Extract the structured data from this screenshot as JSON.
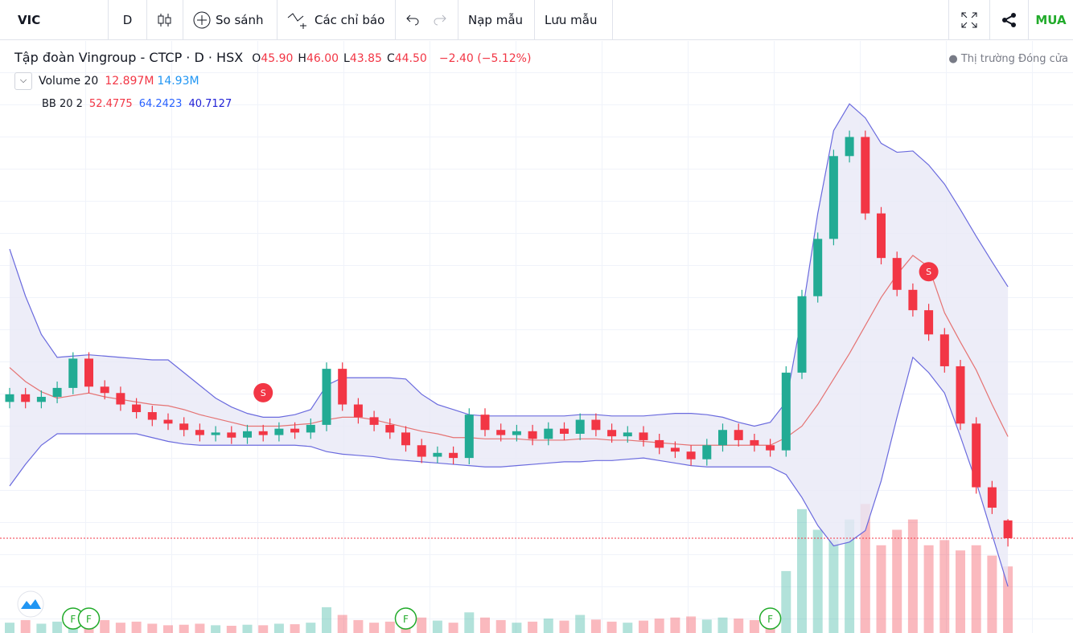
{
  "toolbar": {
    "symbol": "VIC",
    "interval": "D",
    "compare": "So sánh",
    "indicators": "Các chỉ báo",
    "load": "Nạp mẫu",
    "save": "Lưu mẫu",
    "buy": "MUA"
  },
  "legend": {
    "title": "Tập đoàn Vingroup - CTCP · D · HSX",
    "ohlc": [
      {
        "key": "O",
        "value": "45.90"
      },
      {
        "key": "H",
        "value": "46.00"
      },
      {
        "key": "L",
        "value": "43.85"
      },
      {
        "key": "C",
        "value": "44.50"
      }
    ],
    "change": "−2.40 (−5.12%)",
    "status": "Thị trường Đóng cửa"
  },
  "indicators": [
    {
      "name": "Volume 20",
      "values": [
        "12.897M",
        "14.93M"
      ]
    },
    {
      "name": "BB 20 2",
      "values": [
        "52.4775",
        "64.2423",
        "40.7127"
      ]
    }
  ],
  "chart_data": {
    "type": "candlestick",
    "open": [
      55.2,
      55.8,
      55.2,
      55.6,
      56.3,
      58.6,
      56.4,
      55.9,
      55.0,
      54.4,
      53.8,
      53.5,
      53.0,
      52.6,
      52.8,
      52.4,
      52.9,
      52.6,
      53.1,
      52.8,
      53.4,
      57.8,
      55.0,
      54.0,
      53.4,
      52.8,
      51.8,
      50.9,
      51.2,
      50.8,
      54.2,
      53.0,
      52.6,
      52.9,
      52.3,
      53.1,
      52.7,
      53.8,
      53.0,
      52.5,
      52.8,
      52.2,
      51.6,
      51.3,
      50.7,
      51.8,
      53.0,
      52.2,
      51.8,
      51.4,
      57.5,
      63.5,
      68.0,
      74.5,
      76.0,
      70.0,
      66.5,
      64.0,
      62.4,
      60.5,
      58.0,
      53.5,
      48.5,
      45.9
    ],
    "high": [
      56.3,
      56.3,
      56.1,
      56.8,
      59.1,
      59.1,
      56.9,
      56.4,
      55.5,
      54.9,
      54.3,
      54.0,
      53.5,
      53.3,
      53.3,
      53.4,
      53.4,
      53.6,
      53.6,
      53.9,
      58.3,
      58.3,
      55.5,
      54.5,
      53.9,
      53.3,
      52.3,
      51.7,
      51.7,
      54.7,
      54.7,
      53.5,
      53.4,
      53.4,
      53.6,
      53.6,
      54.3,
      54.3,
      53.5,
      53.3,
      53.3,
      52.7,
      52.1,
      51.8,
      52.3,
      53.5,
      53.5,
      52.7,
      52.3,
      58.0,
      64.0,
      68.5,
      75.0,
      76.5,
      76.5,
      70.5,
      67.0,
      64.5,
      62.9,
      61.0,
      58.5,
      54.0,
      49.0,
      46.0
    ],
    "low": [
      54.7,
      54.7,
      54.7,
      55.1,
      55.8,
      55.9,
      55.4,
      54.5,
      53.9,
      53.3,
      53.0,
      52.5,
      52.1,
      52.1,
      51.9,
      51.9,
      52.1,
      52.1,
      52.3,
      52.3,
      52.9,
      54.5,
      53.5,
      52.9,
      52.3,
      51.3,
      50.4,
      50.4,
      50.3,
      50.3,
      52.5,
      52.1,
      52.1,
      51.8,
      51.8,
      52.2,
      52.2,
      52.5,
      52.0,
      52.0,
      51.7,
      51.1,
      50.8,
      50.2,
      50.2,
      51.3,
      51.7,
      51.3,
      50.9,
      50.9,
      57.0,
      63.0,
      67.5,
      74.0,
      69.5,
      66.0,
      63.5,
      61.9,
      60.0,
      57.5,
      53.0,
      48.0,
      46.4,
      43.85
    ],
    "close": [
      55.8,
      55.2,
      55.6,
      56.3,
      58.6,
      56.4,
      55.9,
      55.0,
      54.4,
      53.8,
      53.5,
      53.0,
      52.6,
      52.8,
      52.4,
      52.9,
      52.6,
      53.1,
      52.8,
      53.4,
      57.8,
      55.0,
      54.0,
      53.4,
      52.8,
      51.8,
      50.9,
      51.2,
      50.8,
      54.2,
      53.0,
      52.6,
      52.9,
      52.3,
      53.1,
      52.7,
      53.8,
      53.0,
      52.5,
      52.8,
      52.2,
      51.6,
      51.3,
      50.7,
      51.8,
      53.0,
      52.2,
      51.8,
      51.4,
      57.5,
      63.5,
      68.0,
      74.5,
      76.0,
      70.0,
      66.5,
      64.0,
      62.4,
      60.5,
      58.0,
      53.5,
      48.5,
      46.9,
      44.5
    ],
    "volume": [
      2.0,
      2.5,
      1.8,
      2.2,
      4.0,
      3.5,
      2.5,
      2.0,
      2.2,
      1.8,
      1.5,
      1.6,
      1.8,
      1.5,
      1.4,
      1.6,
      1.5,
      1.8,
      1.7,
      2.0,
      5.0,
      3.5,
      2.5,
      2.0,
      2.2,
      2.5,
      3.0,
      2.4,
      2.0,
      4.0,
      3.0,
      2.5,
      2.0,
      2.2,
      2.8,
      2.4,
      3.5,
      2.6,
      2.2,
      2.0,
      2.4,
      2.8,
      3.0,
      3.2,
      2.6,
      3.0,
      2.8,
      2.5,
      3.5,
      12.0,
      24.0,
      20.0,
      18.0,
      22.0,
      25.0,
      17.0,
      20.0,
      22.0,
      17.0,
      18.0,
      16.0,
      17.0,
      15.0,
      12.897
    ],
    "bands": {
      "upper": [
        67.2,
        63.5,
        60.5,
        58.7,
        58.8,
        58.9,
        58.8,
        58.7,
        58.6,
        58.5,
        58.5,
        57.5,
        56.5,
        55.5,
        54.8,
        54.3,
        54.0,
        54.0,
        54.2,
        54.6,
        56.5,
        57.1,
        57.1,
        57.1,
        57.1,
        57.0,
        55.8,
        55.0,
        54.6,
        54.2,
        54.1,
        54.1,
        54.1,
        54.1,
        54.1,
        54.1,
        54.2,
        54.2,
        54.1,
        54.1,
        54.1,
        54.2,
        54.3,
        54.3,
        54.2,
        54.0,
        53.6,
        53.3,
        53.6,
        55.2,
        62.0,
        70.0,
        76.5,
        78.6,
        77.5,
        75.5,
        74.8,
        74.9,
        73.8,
        72.3,
        70.3,
        68.2,
        66.2,
        64.2423
      ],
      "middle": [
        57.9,
        56.8,
        56.0,
        55.5,
        55.7,
        55.9,
        55.6,
        55.4,
        55.2,
        55.0,
        54.9,
        54.6,
        54.2,
        53.9,
        53.6,
        53.3,
        53.3,
        53.3,
        53.4,
        53.5,
        53.8,
        54.0,
        54.0,
        53.8,
        53.5,
        53.2,
        52.9,
        52.7,
        52.4,
        52.4,
        52.3,
        52.3,
        52.3,
        52.2,
        52.2,
        52.2,
        52.3,
        52.3,
        52.2,
        52.2,
        52.1,
        52.0,
        51.9,
        51.8,
        51.8,
        51.8,
        51.8,
        51.8,
        51.8,
        52.4,
        53.3,
        55.0,
        57.0,
        59.0,
        61.2,
        63.4,
        65.2,
        66.7,
        65.8,
        62.2,
        59.9,
        57.7,
        55.0,
        52.4775
      ],
      "lower": [
        48.6,
        50.3,
        51.8,
        52.7,
        52.7,
        52.7,
        52.7,
        52.7,
        52.7,
        52.4,
        52.1,
        51.9,
        51.8,
        51.8,
        51.8,
        51.8,
        51.8,
        51.8,
        51.8,
        51.7,
        51.3,
        51.1,
        51.0,
        50.9,
        50.7,
        50.6,
        50.5,
        50.4,
        50.3,
        50.2,
        50.1,
        50.1,
        50.2,
        50.3,
        50.4,
        50.5,
        50.5,
        50.6,
        50.6,
        50.7,
        50.8,
        50.6,
        50.4,
        50.2,
        50.1,
        50.1,
        50.1,
        50.1,
        50.1,
        49.5,
        47.7,
        45.5,
        43.9,
        44.2,
        45.1,
        49.0,
        54.0,
        58.7,
        57.5,
        55.9,
        52.5,
        48.9,
        44.8,
        40.7127
      ]
    },
    "ylim": [
      37.06,
      83.6
    ],
    "volume_ylim": [
      0,
      40
    ],
    "up_color": "#22ab94",
    "down_color": "#f23645",
    "band_color": "#6a6ade",
    "band_fill": "#e8e8f6",
    "middle_color": "#e57373",
    "signals": [
      {
        "label": "S",
        "index": 16,
        "kind": "sell"
      },
      {
        "label": "S",
        "index": 58,
        "kind": "sell"
      },
      {
        "label": "F",
        "index": 4,
        "kind": "event"
      },
      {
        "label": "F",
        "index": 5,
        "kind": "event"
      },
      {
        "label": "F",
        "index": 25,
        "kind": "event"
      },
      {
        "label": "F",
        "index": 48,
        "kind": "event"
      }
    ]
  }
}
